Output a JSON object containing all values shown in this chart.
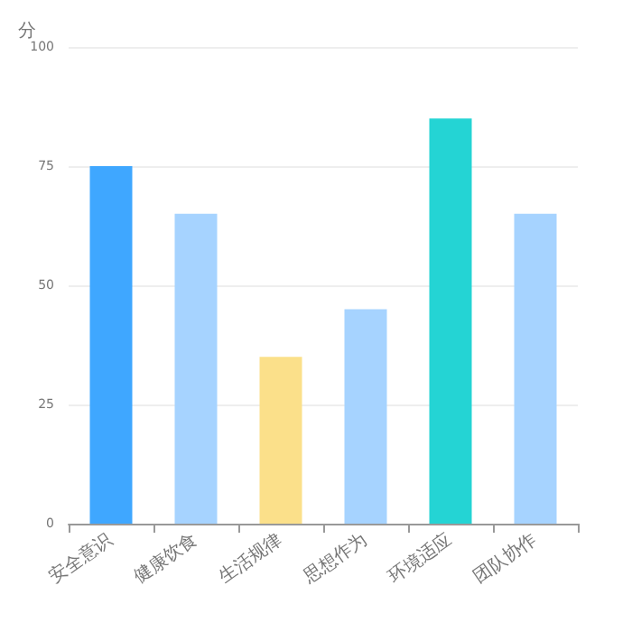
{
  "chart_data": {
    "type": "bar",
    "ylabel": "分",
    "categories": [
      "安全意识",
      "健康饮食",
      "生活规律",
      "思想作为",
      "环境适应",
      "团队协作"
    ],
    "values": [
      75,
      65,
      35,
      45,
      85,
      65
    ],
    "colors": [
      "#3fa7ff",
      "#a6d3ff",
      "#fbe08a",
      "#a6d3ff",
      "#24d4d4",
      "#a6d3ff"
    ],
    "ylim": [
      0,
      100
    ],
    "yticks": [
      0,
      25,
      50,
      75,
      100
    ],
    "grid": "y"
  }
}
